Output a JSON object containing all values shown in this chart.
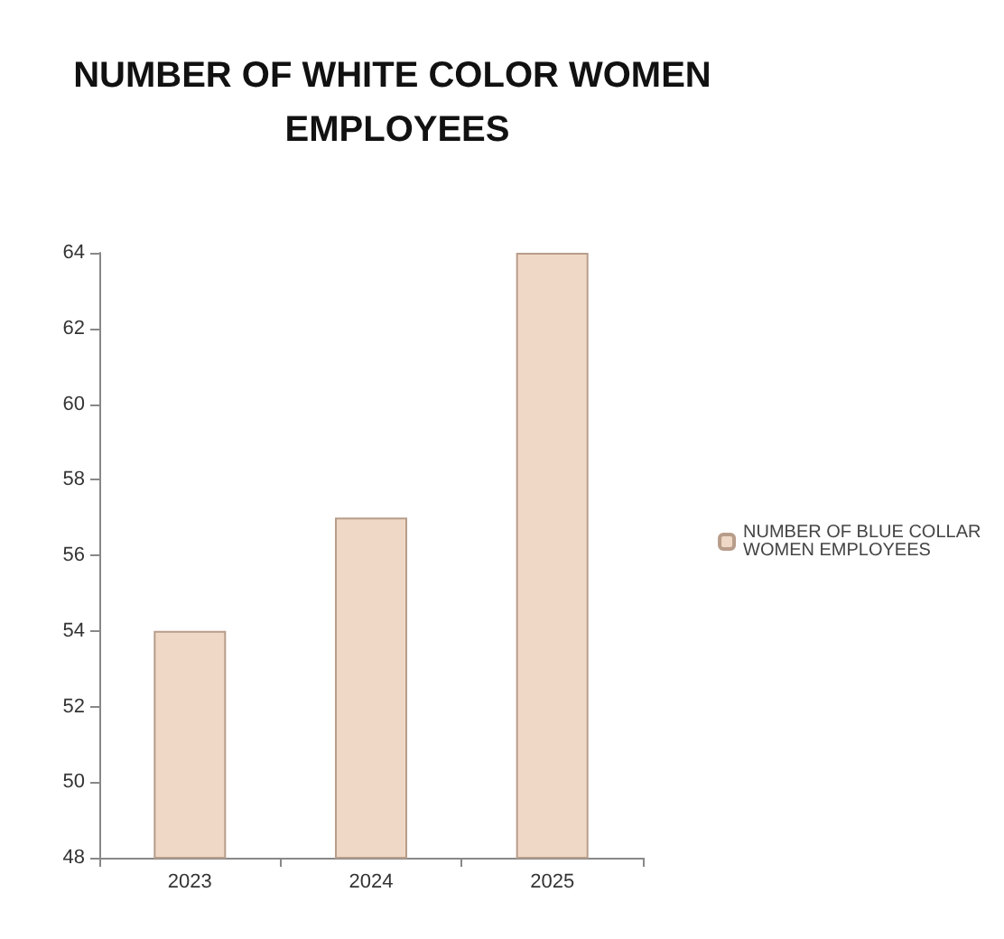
{
  "chart_data": {
    "type": "bar",
    "title": "NUMBER OF WHITE COLOR WOMEN EMPLOYEES",
    "categories": [
      "2023",
      "2024",
      "2025"
    ],
    "series": [
      {
        "name": "NUMBER OF BLUE COLLAR WOMEN EMPLOYEES",
        "color": "#efd9c6",
        "values": [
          54,
          57,
          64
        ]
      }
    ],
    "ylim": [
      48,
      64
    ],
    "yticks": [
      48,
      50,
      52,
      54,
      56,
      58,
      60,
      62,
      64
    ],
    "grid": false,
    "legend": "right"
  }
}
